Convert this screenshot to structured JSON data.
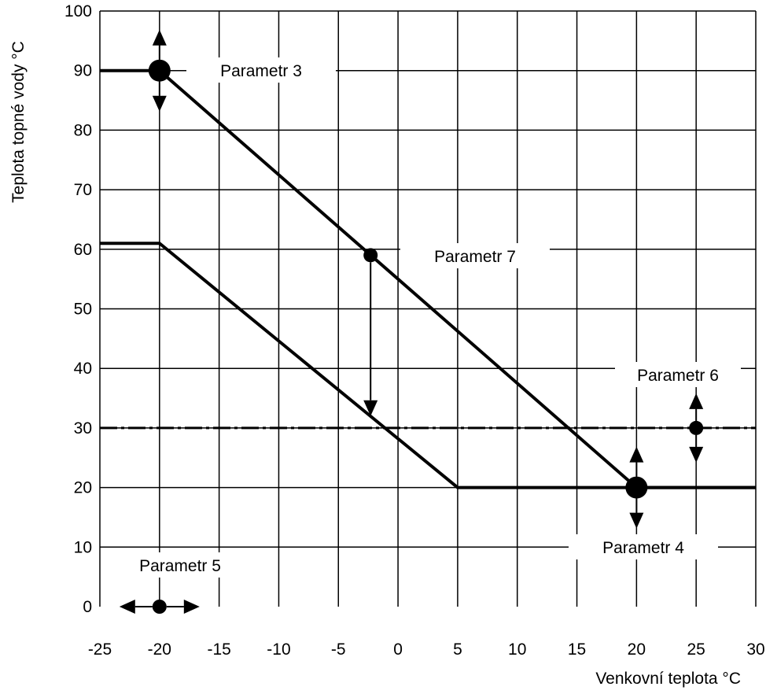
{
  "chart_data": {
    "type": "line",
    "xlabel": "Venkovní teplota °C",
    "ylabel": "Teplota topné vody °C",
    "xlim": [
      -25,
      30
    ],
    "ylim": [
      0,
      100
    ],
    "x_ticks": [
      -25,
      -20,
      -15,
      -10,
      -5,
      0,
      5,
      10,
      15,
      20,
      25,
      30
    ],
    "y_ticks": [
      0,
      10,
      20,
      30,
      40,
      50,
      60,
      70,
      80,
      90,
      100
    ],
    "grid": true,
    "series": [
      {
        "points": [
          [
            -25,
            90
          ],
          [
            -20,
            90
          ],
          [
            20,
            20
          ],
          [
            30,
            20
          ]
        ]
      },
      {
        "points": [
          [
            -25,
            61
          ],
          [
            -20,
            61
          ],
          [
            5,
            20
          ],
          [
            30,
            20
          ]
        ]
      }
    ],
    "reference_lines": [
      {
        "orientation": "horizontal",
        "y": 30,
        "style": "dash-dot"
      }
    ],
    "annotations": [
      {
        "label": "Parametr 3",
        "marker": [
          -20,
          90
        ],
        "marker_size": "large",
        "arrows": "vertical"
      },
      {
        "label": "Parametr 7",
        "marker": [
          -2.3,
          59
        ],
        "marker_size": "small",
        "arrow_to": [
          -2.3,
          32
        ]
      },
      {
        "label": "Parametr 6",
        "marker": [
          25,
          30
        ],
        "marker_size": "small",
        "arrows": "vertical"
      },
      {
        "label": "Parametr 4",
        "marker": [
          20,
          20
        ],
        "marker_size": "large",
        "arrows": "vertical"
      },
      {
        "label": "Parametr 5",
        "marker": [
          -20,
          0
        ],
        "marker_size": "small",
        "arrows": "horizontal"
      }
    ]
  }
}
